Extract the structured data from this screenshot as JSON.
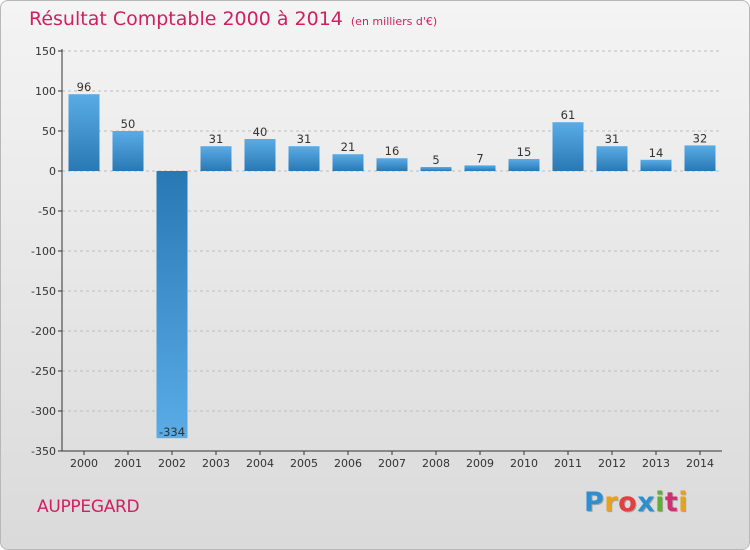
{
  "header": {
    "title": "Résultat Comptable 2000 à 2014",
    "subtitle": "(en milliers d'€)"
  },
  "footer": {
    "commune": "AUPPEGARD",
    "logo": [
      "P",
      "r",
      "o",
      "x",
      "i",
      "t",
      "i"
    ],
    "logo_colors": [
      "#2d8fd0",
      "#e8a020",
      "#e04040",
      "#2d8fd0",
      "#60b030",
      "#d03070",
      "#e8a020"
    ]
  },
  "colors": {
    "bar_light": "#5aace6",
    "bar_dark": "#2878b4",
    "axis": "#333333",
    "grid": "#bdbdbd"
  },
  "chart_data": {
    "type": "bar",
    "title": "Résultat Comptable 2000 à 2014",
    "subtitle": "(en milliers d'€)",
    "xlabel": "",
    "ylabel": "",
    "categories": [
      "2000",
      "2001",
      "2002",
      "2003",
      "2004",
      "2005",
      "2006",
      "2007",
      "2008",
      "2009",
      "2010",
      "2011",
      "2012",
      "2013",
      "2014"
    ],
    "values": [
      96,
      50,
      -334,
      31,
      40,
      31,
      21,
      16,
      5,
      7,
      15,
      61,
      31,
      14,
      32
    ],
    "ylim": [
      -350,
      150
    ],
    "yticks": [
      150,
      100,
      50,
      0,
      -50,
      -100,
      -150,
      -200,
      -250,
      -300,
      -350
    ],
    "grid": "horizontal dashed"
  }
}
